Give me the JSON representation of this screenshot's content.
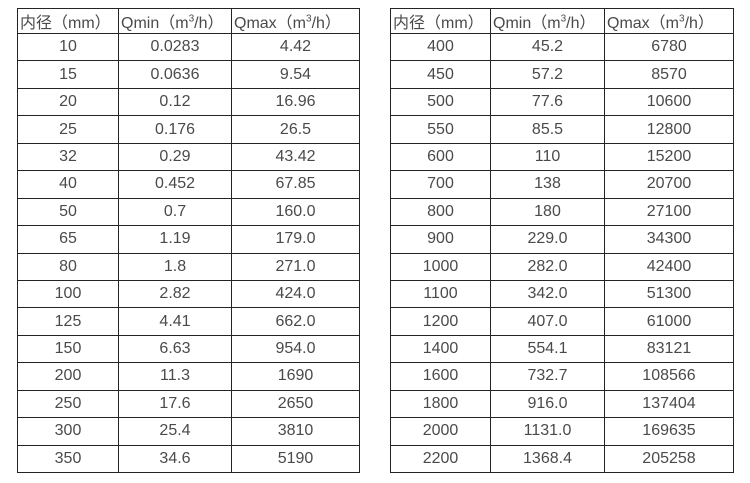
{
  "colors": {
    "background": "#ffffff",
    "border": "#242424",
    "text": "#4a4a4a"
  },
  "chart_data": [
    {
      "type": "table",
      "name": "small-diameter-flow-rates",
      "headers": [
        {
          "text": "内径（mm）"
        },
        {
          "pre": "Qmin（m",
          "sup": "3",
          "post": "/h）"
        },
        {
          "pre": "Qmax（m",
          "sup": "3",
          "post": "/h）"
        }
      ],
      "rows": [
        [
          "10",
          "0.0283",
          "4.42"
        ],
        [
          "15",
          "0.0636",
          "9.54"
        ],
        [
          "20",
          "0.12",
          "16.96"
        ],
        [
          "25",
          "0.176",
          "26.5"
        ],
        [
          "32",
          "0.29",
          "43.42"
        ],
        [
          "40",
          "0.452",
          "67.85"
        ],
        [
          "50",
          "0.7",
          "160.0"
        ],
        [
          "65",
          "1.19",
          "179.0"
        ],
        [
          "80",
          "1.8",
          "271.0"
        ],
        [
          "100",
          "2.82",
          "424.0"
        ],
        [
          "125",
          "4.41",
          "662.0"
        ],
        [
          "150",
          "6.63",
          "954.0"
        ],
        [
          "200",
          "11.3",
          "1690"
        ],
        [
          "250",
          "17.6",
          "2650"
        ],
        [
          "300",
          "25.4",
          "3810"
        ],
        [
          "350",
          "34.6",
          "5190"
        ]
      ]
    },
    {
      "type": "table",
      "name": "large-diameter-flow-rates",
      "headers": [
        {
          "text": "内径（mm）"
        },
        {
          "pre": "Qmin（m",
          "sup": "3",
          "post": "/h）"
        },
        {
          "pre": "Qmax（m",
          "sup": "3",
          "post": "/h）"
        }
      ],
      "rows": [
        [
          "400",
          "45.2",
          "6780"
        ],
        [
          "450",
          "57.2",
          "8570"
        ],
        [
          "500",
          "77.6",
          "10600"
        ],
        [
          "550",
          "85.5",
          "12800"
        ],
        [
          "600",
          "110",
          "15200"
        ],
        [
          "700",
          "138",
          "20700"
        ],
        [
          "800",
          "180",
          "27100"
        ],
        [
          "900",
          "229.0",
          "34300"
        ],
        [
          "1000",
          "282.0",
          "42400"
        ],
        [
          "1100",
          "342.0",
          "51300"
        ],
        [
          "1200",
          "407.0",
          "61000"
        ],
        [
          "1400",
          "554.1",
          "83121"
        ],
        [
          "1600",
          "732.7",
          "108566"
        ],
        [
          "1800",
          "916.0",
          "137404"
        ],
        [
          "2000",
          "1131.0",
          "169635"
        ],
        [
          "2200",
          "1368.4",
          "205258"
        ]
      ]
    }
  ]
}
